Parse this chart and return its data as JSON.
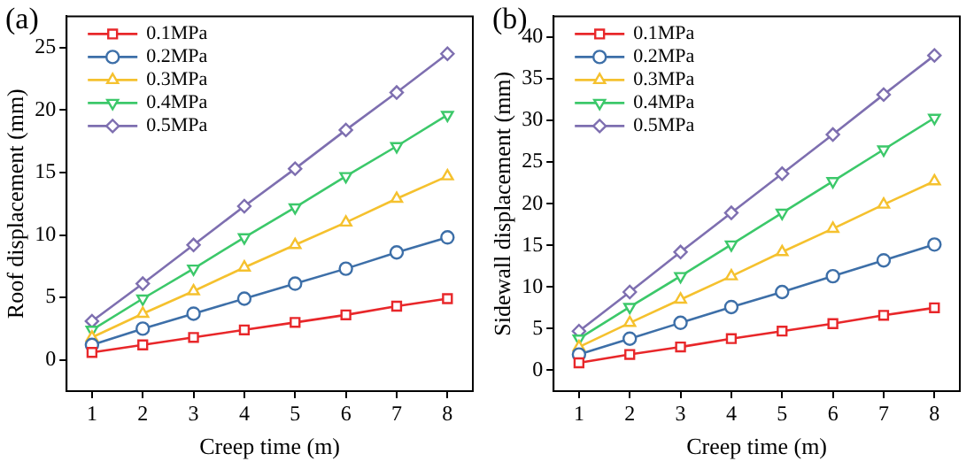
{
  "chart_data": [
    {
      "type": "line",
      "title": "(a)",
      "xlabel": "Creep time (m)",
      "ylabel": "Roof displacement (mm)",
      "x": [
        1,
        2,
        3,
        4,
        5,
        6,
        7,
        8
      ],
      "xlim": [
        0.5,
        8.5
      ],
      "xticks": [
        1,
        2,
        3,
        4,
        5,
        6,
        7,
        8
      ],
      "ylim": [
        -2.5,
        27.5
      ],
      "yticks": [
        0,
        5,
        10,
        15,
        20,
        25
      ],
      "grid": false,
      "legend": "top left",
      "line_style": "solid",
      "series": [
        {
          "name": "0.1MPa",
          "color": "#e8272a",
          "marker": "square",
          "values": [
            0.6,
            1.2,
            1.8,
            2.4,
            3.0,
            3.6,
            4.3,
            4.9
          ]
        },
        {
          "name": "0.2MPa",
          "color": "#3d6fa8",
          "marker": "circle",
          "values": [
            1.2,
            2.5,
            3.7,
            4.9,
            6.1,
            7.3,
            8.6,
            9.8
          ]
        },
        {
          "name": "0.3MPa",
          "color": "#f5c12e",
          "marker": "triangle",
          "values": [
            1.8,
            3.7,
            5.5,
            7.4,
            9.2,
            11.0,
            12.9,
            14.7
          ]
        },
        {
          "name": "0.4MPa",
          "color": "#3cc86a",
          "marker": "triangle-down",
          "values": [
            2.4,
            4.9,
            7.3,
            9.8,
            12.2,
            14.7,
            17.1,
            19.6
          ]
        },
        {
          "name": "0.5MPa",
          "color": "#7e6fb0",
          "marker": "diamond",
          "values": [
            3.1,
            6.1,
            9.2,
            12.3,
            15.3,
            18.4,
            21.4,
            24.5
          ]
        }
      ]
    },
    {
      "type": "line",
      "title": "(b)",
      "xlabel": "Creep time (m)",
      "ylabel": "Sidewall displacement (mm)",
      "x": [
        1,
        2,
        3,
        4,
        5,
        6,
        7,
        8
      ],
      "xlim": [
        0.5,
        8.5
      ],
      "xticks": [
        1,
        2,
        3,
        4,
        5,
        6,
        7,
        8
      ],
      "ylim": [
        -2.5,
        42.5
      ],
      "yticks": [
        0,
        5,
        10,
        15,
        20,
        25,
        30,
        35,
        40
      ],
      "grid": false,
      "legend": "top left",
      "line_style": "solid",
      "series": [
        {
          "name": "0.1MPa",
          "color": "#e8272a",
          "marker": "square",
          "values": [
            0.9,
            1.9,
            2.8,
            3.8,
            4.7,
            5.6,
            6.6,
            7.5
          ]
        },
        {
          "name": "0.2MPa",
          "color": "#3d6fa8",
          "marker": "circle",
          "values": [
            1.9,
            3.8,
            5.7,
            7.6,
            9.4,
            11.3,
            13.2,
            15.1
          ]
        },
        {
          "name": "0.3MPa",
          "color": "#f5c12e",
          "marker": "triangle",
          "values": [
            2.8,
            5.7,
            8.5,
            11.3,
            14.2,
            17.0,
            19.9,
            22.7
          ]
        },
        {
          "name": "0.4MPa",
          "color": "#3cc86a",
          "marker": "triangle-down",
          "values": [
            3.8,
            7.6,
            11.3,
            15.1,
            18.9,
            22.7,
            26.5,
            30.3
          ]
        },
        {
          "name": "0.5MPa",
          "color": "#7e6fb0",
          "marker": "diamond",
          "values": [
            4.7,
            9.4,
            14.2,
            18.9,
            23.6,
            28.3,
            33.1,
            37.8
          ]
        }
      ]
    }
  ]
}
